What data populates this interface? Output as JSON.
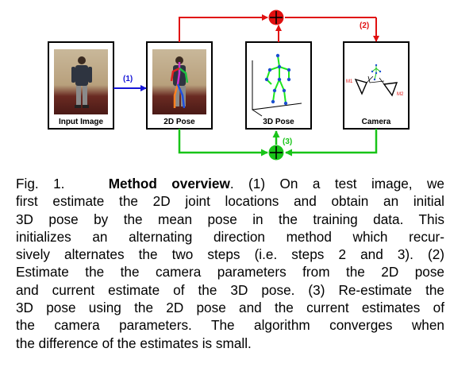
{
  "figure": {
    "boxes": [
      {
        "id": "input",
        "label": "Input Image"
      },
      {
        "id": "pose2d",
        "label": "2D Pose"
      },
      {
        "id": "pose3d",
        "label": "3D Pose"
      },
      {
        "id": "camera",
        "label": "Camera"
      }
    ],
    "steps": {
      "step1": "(1)",
      "step2": "(2)",
      "step3": "(3)"
    },
    "camera_labels": {
      "m1": "M1",
      "m2": "M2"
    },
    "colors": {
      "step1": "#1515d6",
      "step2": "#e01010",
      "step3": "#18c418",
      "skeleton3d": "#1ee61e",
      "joint": "#1a4fd0"
    }
  },
  "caption": {
    "prefix": "Fig. 1.",
    "heading": "Method overview",
    "lines": [
      ". (1) On a test image, we",
      "first estimate the 2D joint locations and obtain an initial",
      "3D pose by the mean pose in the training data. This",
      "initializes an alternating direction method which recur-",
      "sively alternates the two steps (i.e. steps 2 and 3). (2)",
      "Estimate the the camera parameters from the 2D pose",
      "and current estimate of the 3D pose. (3) Re-estimate the",
      "3D pose using the 2D pose and the current estimates of",
      "the camera parameters. The algorithm converges when",
      "the difference of the estimates is small."
    ]
  }
}
